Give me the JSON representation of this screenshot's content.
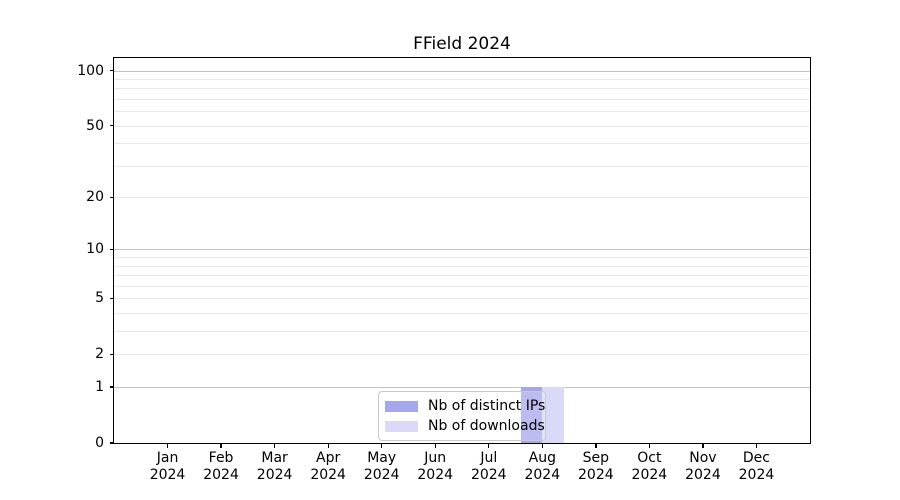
{
  "title": "FField 2024",
  "colors": {
    "distinct_ips": "#a6a6ec",
    "downloads": "#d9d9f8",
    "grid_major": "#c2c2c2",
    "grid_minor": "#e8e8e8",
    "spine": "#000000",
    "legend_border": "#c9c9c9"
  },
  "chart_data": {
    "type": "bar",
    "title": "FField 2024",
    "xlabel": "",
    "ylabel": "",
    "yscale": "log1p",
    "ylim": [
      0,
      116
    ],
    "grid": "horizontal",
    "categories": [
      "Jan 2024",
      "Feb 2024",
      "Mar 2024",
      "Apr 2024",
      "May 2024",
      "Jun 2024",
      "Jul 2024",
      "Aug 2024",
      "Sep 2024",
      "Oct 2024",
      "Nov 2024",
      "Dec 2024"
    ],
    "series": [
      {
        "name": "Nb of distinct IPs",
        "color": "#a6a6ec",
        "values": [
          0,
          0,
          0,
          0,
          0,
          0,
          0,
          1,
          0,
          0,
          0,
          0
        ]
      },
      {
        "name": "Nb of downloads",
        "color": "#d9d9f8",
        "values": [
          0,
          0,
          0,
          0,
          0,
          0,
          0,
          1,
          0,
          0,
          0,
          0
        ]
      }
    ],
    "y_major_ticks": [
      100,
      50,
      20,
      10,
      5,
      2,
      1,
      0
    ],
    "y_minor_gridlines": [
      3,
      4,
      6,
      7,
      8,
      9,
      30,
      40,
      60,
      70,
      80,
      90
    ],
    "legend": {
      "position": "lower center",
      "labels": [
        "Nb of distinct IPs",
        "Nb of downloads"
      ]
    }
  }
}
